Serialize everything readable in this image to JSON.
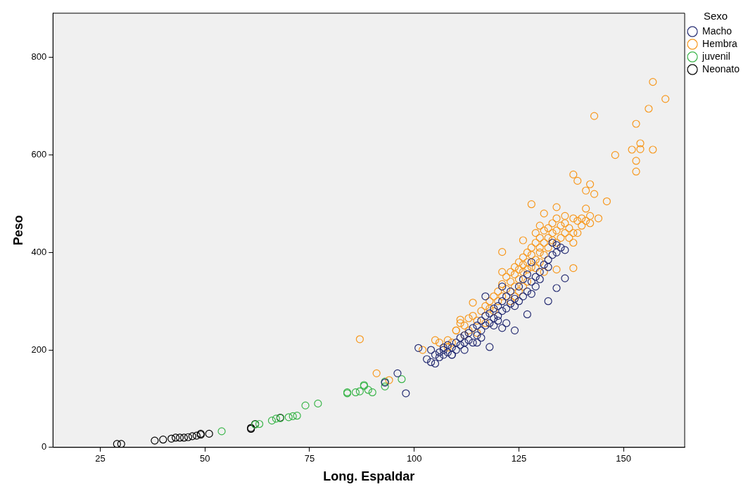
{
  "chart_data": {
    "type": "scatter",
    "xlabel": "Long. Espaldar",
    "ylabel": "Peso",
    "legend_title": "Sexo",
    "legend": "top right",
    "marker": "circle",
    "grid": false,
    "xlim": [
      13.7,
      164.6
    ],
    "xticks": [
      25,
      50,
      75,
      100,
      125,
      150
    ],
    "ylim": [
      0,
      891
    ],
    "yticks": [
      0,
      200,
      400,
      600,
      800
    ],
    "series": [
      {
        "name": "Macho",
        "color": "#262d73",
        "x": [
          104,
          105,
          106,
          107,
          107,
          108,
          108,
          109,
          109,
          110,
          110,
          111,
          111,
          112,
          112,
          112,
          113,
          113,
          114,
          114,
          115,
          115,
          115,
          116,
          116,
          116,
          117,
          117,
          117,
          118,
          118,
          119,
          119,
          119,
          120,
          120,
          120,
          121,
          121,
          121,
          122,
          122,
          122,
          123,
          123,
          124,
          124,
          125,
          125,
          126,
          126,
          127,
          127,
          128,
          128,
          128,
          129,
          129,
          130,
          130,
          131,
          132,
          133,
          133,
          134,
          134,
          135,
          136,
          109,
          106,
          103,
          104,
          105,
          101,
          93,
          96,
          98,
          107,
          118,
          121,
          124,
          127,
          132,
          134,
          136,
          132
        ],
        "values": [
          200,
          190,
          185,
          190,
          200,
          195,
          210,
          190,
          205,
          215,
          200,
          225,
          210,
          230,
          215,
          200,
          220,
          235,
          215,
          245,
          230,
          250,
          215,
          240,
          260,
          225,
          250,
          270,
          310,
          255,
          275,
          265,
          285,
          250,
          270,
          290,
          260,
          280,
          300,
          330,
          285,
          310,
          255,
          295,
          320,
          305,
          290,
          300,
          330,
          310,
          345,
          320,
          355,
          340,
          315,
          380,
          350,
          330,
          360,
          345,
          375,
          385,
          395,
          420,
          400,
          415,
          410,
          405,
          190,
          195,
          181,
          175,
          172,
          204,
          133,
          152,
          111,
          205,
          206,
          245,
          240,
          273,
          300,
          327,
          347,
          370
        ]
      },
      {
        "name": "Hembra",
        "color": "#f7981d",
        "x": [
          110,
          111,
          112,
          113,
          114,
          115,
          116,
          117,
          118,
          118,
          119,
          120,
          120,
          121,
          121,
          122,
          122,
          123,
          123,
          124,
          124,
          124,
          125,
          125,
          125,
          126,
          126,
          126,
          127,
          127,
          127,
          128,
          128,
          128,
          129,
          129,
          129,
          130,
          130,
          130,
          130,
          131,
          131,
          131,
          132,
          132,
          132,
          133,
          133,
          133,
          134,
          134,
          134,
          135,
          135,
          136,
          136,
          136,
          137,
          137,
          138,
          138,
          138,
          139,
          139,
          140,
          140,
          141,
          141,
          142,
          142,
          113,
          115,
          117,
          119,
          123,
          108,
          109,
          112,
          106,
          127,
          130,
          131,
          134,
          129,
          121,
          124,
          126,
          125,
          87,
          91,
          94,
          102,
          105,
          108,
          110,
          111,
          114,
          121,
          126,
          128,
          131,
          134,
          138,
          138,
          139,
          141,
          142,
          143,
          144,
          146,
          143,
          148,
          152,
          153,
          153,
          153,
          154,
          154,
          156,
          157,
          157,
          160
        ],
        "values": [
          240,
          255,
          250,
          265,
          270,
          260,
          280,
          290,
          300,
          285,
          310,
          320,
          300,
          335,
          310,
          350,
          325,
          340,
          360,
          355,
          330,
          370,
          365,
          345,
          380,
          390,
          360,
          375,
          400,
          380,
          365,
          395,
          370,
          410,
          385,
          420,
          440,
          400,
          430,
          455,
          410,
          445,
          420,
          395,
          430,
          450,
          410,
          425,
          440,
          460,
          445,
          420,
          470,
          430,
          455,
          440,
          475,
          460,
          430,
          450,
          470,
          440,
          420,
          465,
          440,
          470,
          455,
          490,
          465,
          460,
          475,
          240,
          235,
          255,
          280,
          300,
          205,
          215,
          230,
          215,
          340,
          380,
          360,
          365,
          368,
          360,
          310,
          330,
          320,
          222,
          152,
          138,
          200,
          220,
          220,
          240,
          262,
          297,
          401,
          425,
          499,
          480,
          493,
          368,
          560,
          547,
          527,
          540,
          520,
          470,
          505,
          680,
          600,
          611,
          588,
          566,
          664,
          612,
          624,
          695,
          611,
          750,
          715
        ]
      },
      {
        "name": "juvenil",
        "color": "#3ab54a",
        "x": [
          54,
          62,
          63,
          66,
          67,
          68,
          70,
          71,
          72,
          74,
          77,
          84,
          84,
          86,
          87,
          88,
          88,
          89,
          90,
          93,
          93,
          97
        ],
        "values": [
          33,
          47,
          48,
          55,
          59,
          60,
          62,
          64,
          65,
          86,
          90,
          113,
          111,
          113,
          115,
          128,
          126,
          118,
          113,
          125,
          135,
          140
        ]
      },
      {
        "name": "Neonato",
        "color": "#000000",
        "x": [
          29,
          30,
          38,
          40,
          42,
          43,
          44,
          45,
          46,
          47,
          48,
          49,
          49,
          51,
          61,
          61,
          62,
          68
        ],
        "values": [
          7,
          7,
          14,
          16,
          18,
          20,
          20,
          20,
          21,
          23,
          24,
          26,
          28,
          28,
          38,
          40,
          48,
          61
        ]
      }
    ]
  }
}
